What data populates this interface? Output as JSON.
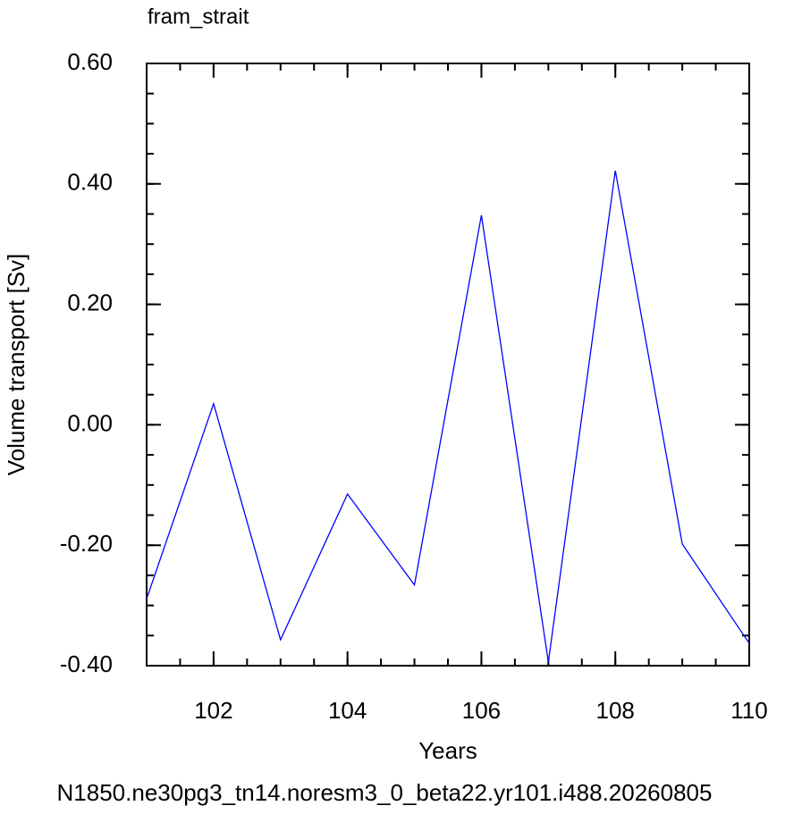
{
  "chart_data": {
    "type": "line",
    "title": "fram_strait",
    "xlabel": "Years",
    "ylabel": "Volume transport [Sv]",
    "footer": "N1850.ne30pg3_tn14.noresm3_0_beta22.yr101.i488.20260805",
    "footer_color": "#0000ff",
    "x": [
      101,
      102,
      103,
      104,
      105,
      106,
      107,
      108,
      109,
      110
    ],
    "series": [
      {
        "color": "#0000ff",
        "values": [
          -0.289,
          0.035,
          -0.357,
          -0.115,
          -0.266,
          0.348,
          -0.394,
          0.422,
          -0.198,
          -0.363
        ]
      }
    ],
    "xlim": [
      101,
      110
    ],
    "xticks": [
      102,
      104,
      106,
      108,
      110
    ],
    "ylim": [
      -0.4,
      0.6
    ],
    "yticks": [
      {
        "value": -0.4,
        "label": "-0.40"
      },
      {
        "value": -0.2,
        "label": "-0.20"
      },
      {
        "value": 0,
        "label": "0.00"
      },
      {
        "value": 0.2,
        "label": "0.20"
      },
      {
        "value": 0.4,
        "label": "0.40"
      },
      {
        "value": 0.6,
        "label": "0.60"
      }
    ],
    "grid": false
  }
}
